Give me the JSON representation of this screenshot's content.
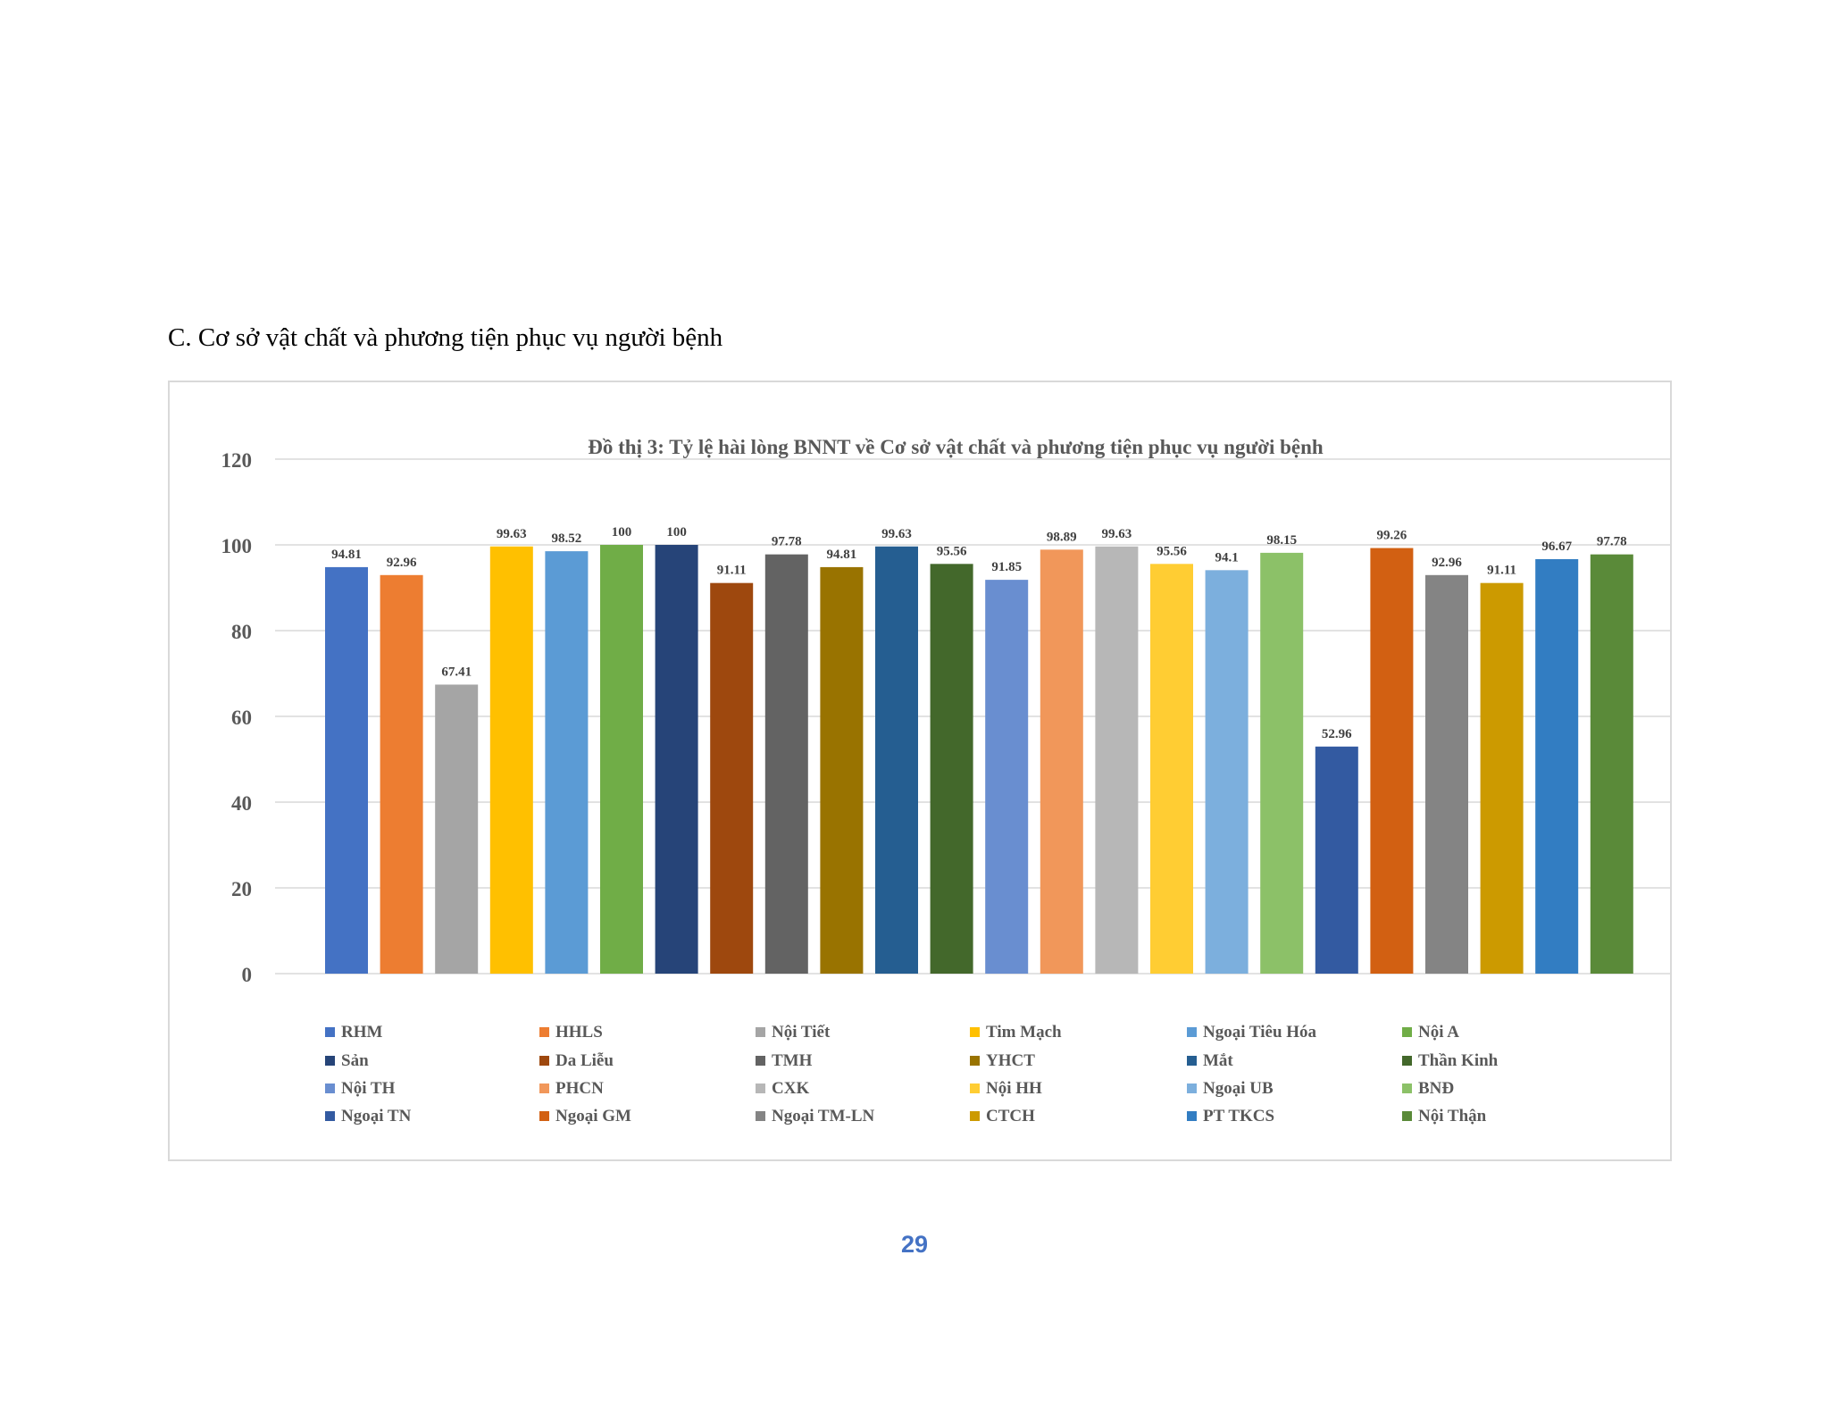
{
  "heading": "C. Cơ sở vật chất và phương tiện phục vụ người bệnh",
  "page_number": "29",
  "chart_data": {
    "type": "bar",
    "title": "Đồ thị 3: Tỷ lệ hài lòng BNNT về Cơ sở vật chất và phương tiện phục vụ người bệnh",
    "xlabel": "",
    "ylabel": "",
    "ylim": [
      0,
      120
    ],
    "yticks": [
      "0",
      "20",
      "40",
      "60",
      "80",
      "100",
      "120"
    ],
    "grid": true,
    "legend_position": "bottom",
    "categories": [
      "RHM",
      "HHLS",
      "Nội Tiết",
      "Tim Mạch",
      "Ngoại Tiêu Hóa",
      "Nội A",
      "Sản",
      "Da Liễu",
      "TMH",
      "YHCT",
      "Mắt",
      "Thần Kinh",
      "Nội TH",
      "PHCN",
      "CXK",
      "Nội HH",
      "Ngoại UB",
      "BNĐ",
      "Ngoại TN",
      "Ngoại GM",
      "Ngoại TM-LN",
      "CTCH",
      "PT TKCS",
      "Nội Thận"
    ],
    "values": [
      94.81,
      92.96,
      67.41,
      99.63,
      98.52,
      100,
      100,
      91.11,
      97.78,
      94.81,
      99.63,
      95.56,
      91.85,
      98.89,
      99.63,
      95.56,
      94.1,
      98.15,
      52.96,
      99.26,
      92.96,
      91.11,
      96.67,
      97.78
    ],
    "value_labels": [
      "94.81",
      "92.96",
      "67.41",
      "99.63",
      "98.52",
      "100",
      "100",
      "91.11",
      "97.78",
      "94.81",
      "99.63",
      "95.56",
      "91.85",
      "98.89",
      "99.63",
      "95.56",
      "94.1",
      "98.15",
      "52.96",
      "99.26",
      "92.96",
      "91.11",
      "96.67",
      "97.78"
    ],
    "colors": [
      "#4472c4",
      "#ed7d31",
      "#a5a5a5",
      "#ffc000",
      "#5b9bd5",
      "#70ad47",
      "#264478",
      "#9e480e",
      "#636363",
      "#997300",
      "#255e91",
      "#43682b",
      "#698ed0",
      "#f1975a",
      "#b7b7b7",
      "#ffcd33",
      "#7cafdd",
      "#8cc168",
      "#335aa1",
      "#d26012",
      "#848484",
      "#cc9a00",
      "#327dc2",
      "#5a8a39"
    ]
  }
}
